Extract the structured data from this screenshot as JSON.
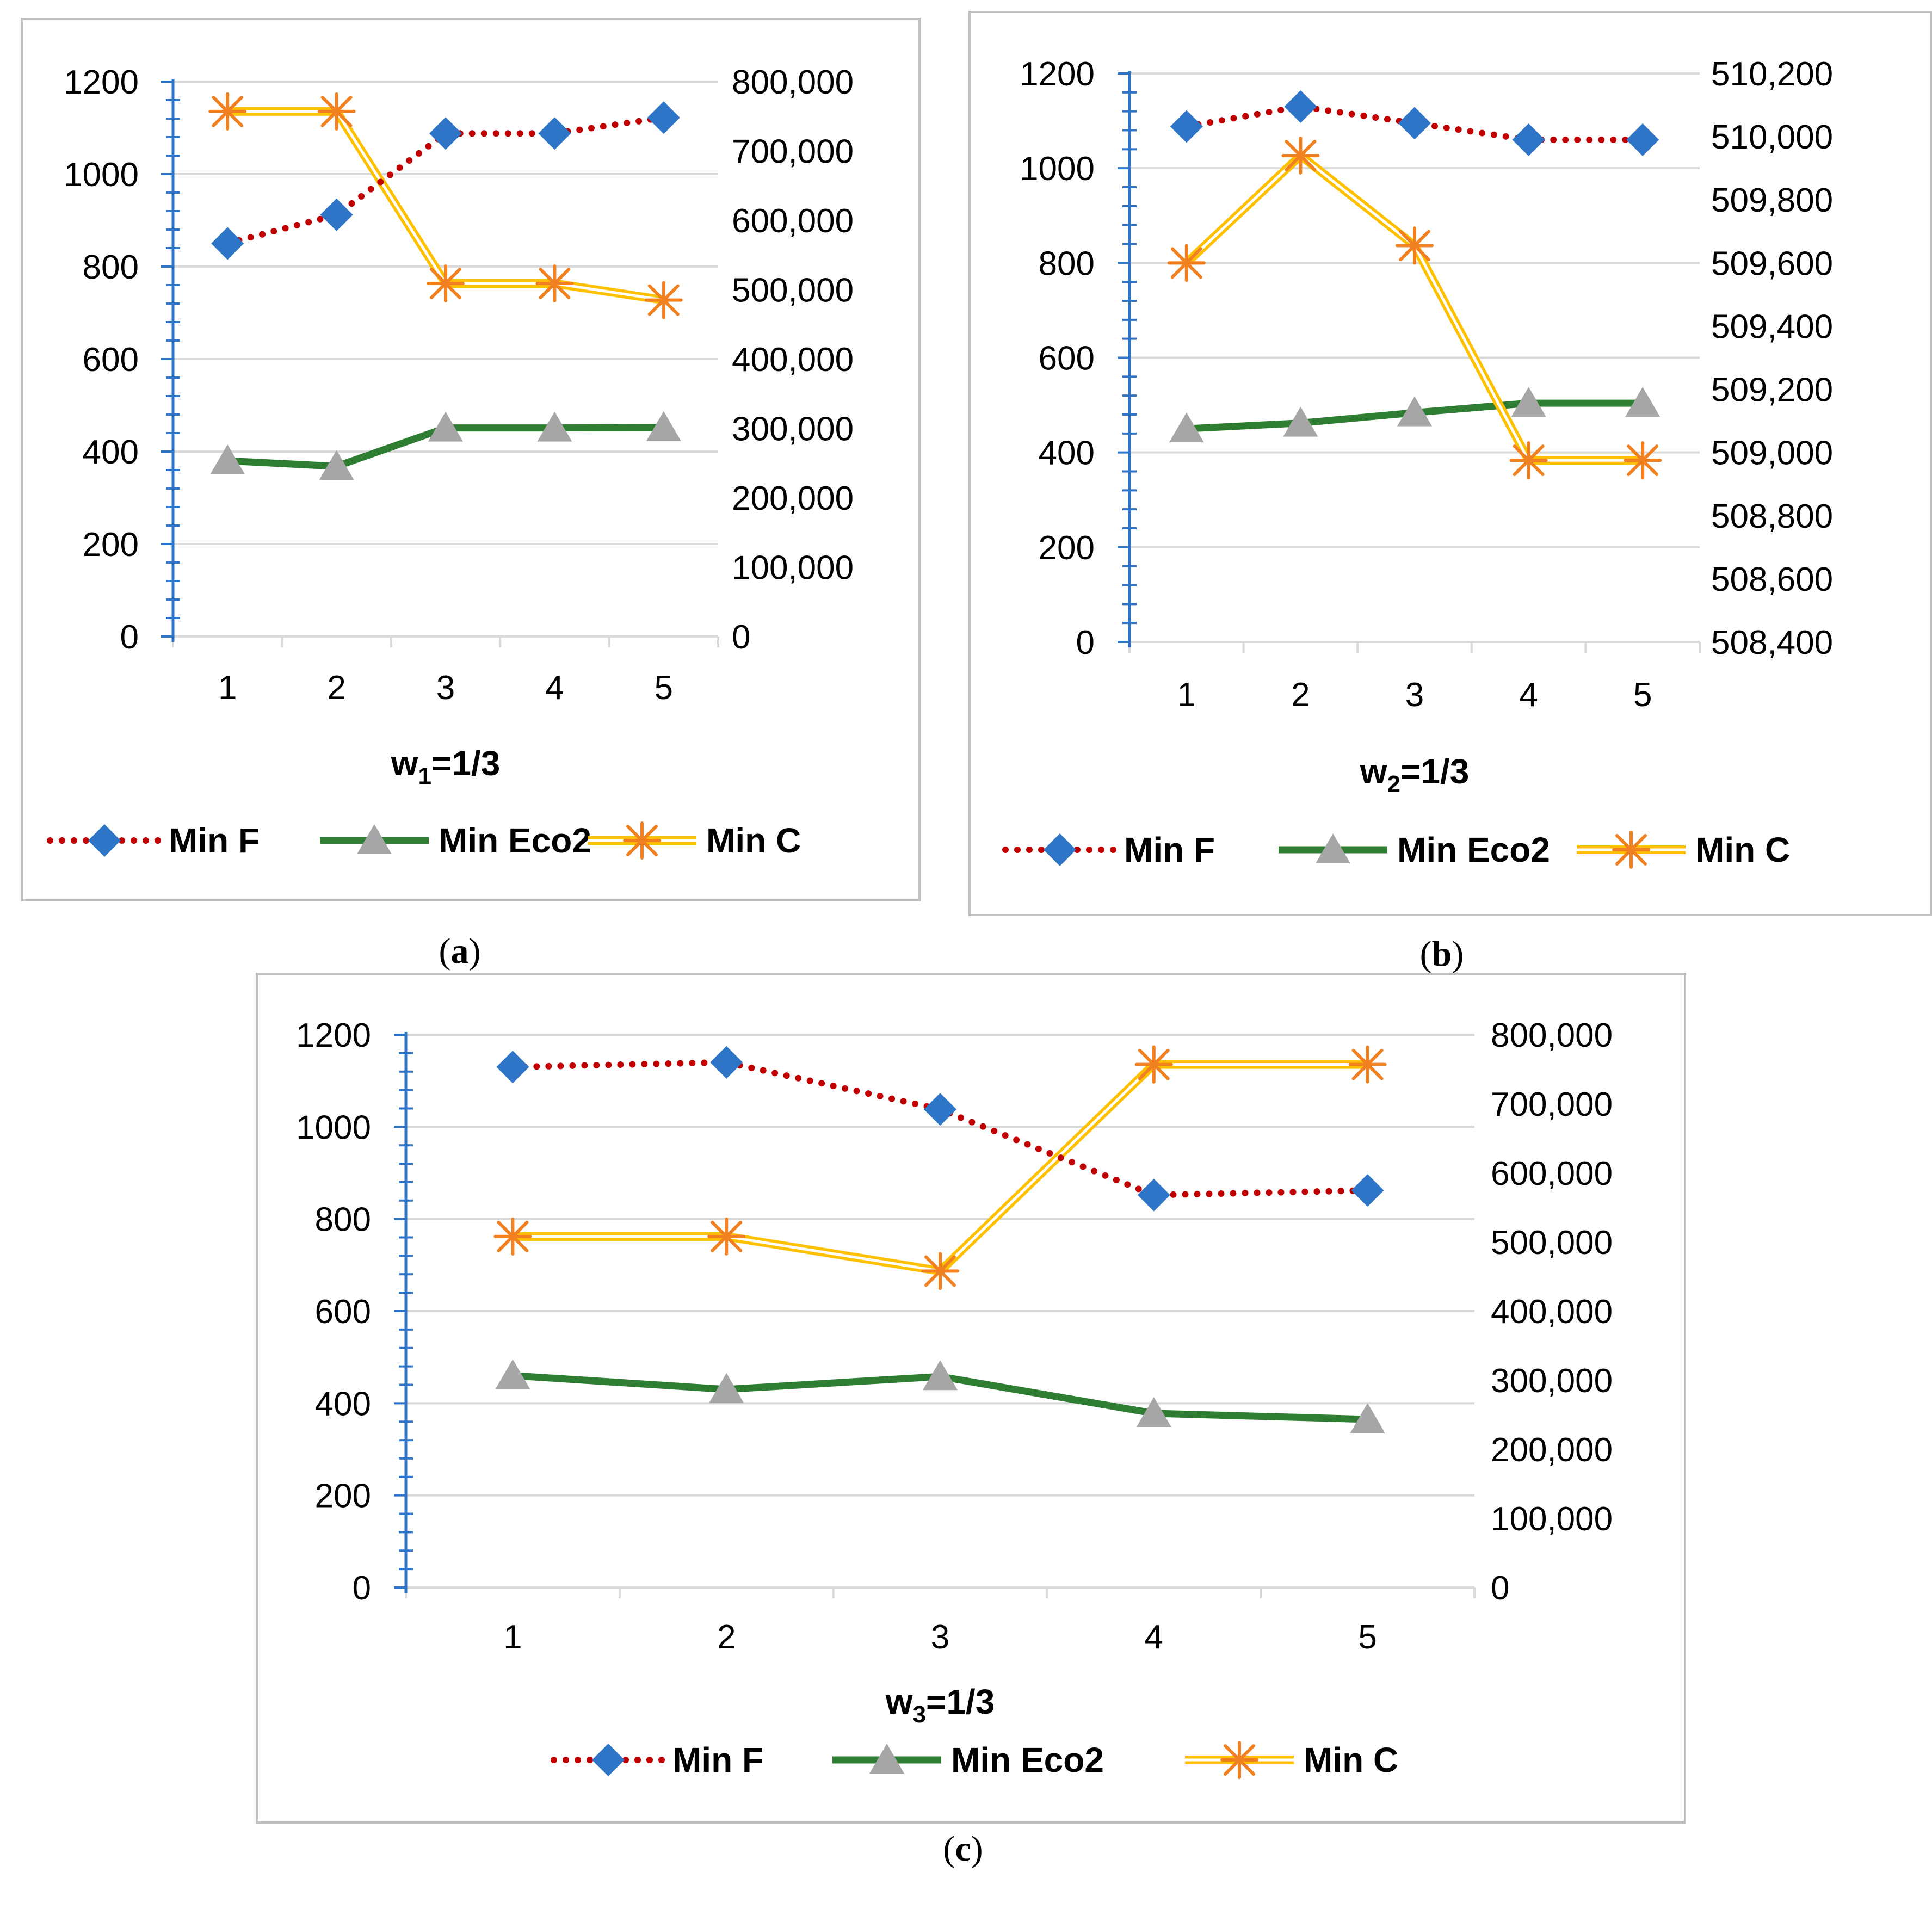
{
  "figure": {
    "colors": {
      "min_f": "#C00000",
      "min_f_marker": "#2E75C8",
      "min_eco2": "#2E7D32",
      "min_eco2_marker": "#A6A6A6",
      "min_c": "#FFC000",
      "min_c_marker": "#F08020",
      "axis_left": "#2E75C8",
      "grid": "#D9D9D9",
      "frame": "#BFBFBF"
    }
  },
  "chart_data": [
    {
      "type": "line",
      "caption": "a",
      "xlabel_main": "w",
      "xlabel_sub": "1",
      "xlabel_tail": "=1/3",
      "categories": [
        "1",
        "2",
        "3",
        "4",
        "5"
      ],
      "ylim_left": [
        0,
        1200
      ],
      "yticks_left": [
        "0",
        "200",
        "400",
        "600",
        "800",
        "1000",
        "1200"
      ],
      "ylim_right": [
        0,
        800000
      ],
      "yticks_right": [
        "0",
        "100,000",
        "200,000",
        "300,000",
        "400,000",
        "500,000",
        "600,000",
        "700,000",
        "800,000"
      ],
      "grid": true,
      "legend_position": "bottom",
      "series": [
        {
          "name": "Min F",
          "axis": "left",
          "values": [
            850,
            912,
            1088,
            1088,
            1122
          ]
        },
        {
          "name": "Min Eco2",
          "axis": "left",
          "values": [
            380,
            368,
            451,
            451,
            452
          ]
        },
        {
          "name": "Min C",
          "axis": "right",
          "values": [
            757000,
            757000,
            509000,
            509000,
            485000
          ]
        }
      ]
    },
    {
      "type": "line",
      "caption": "b",
      "xlabel_main": "w",
      "xlabel_sub": "2",
      "xlabel_tail": "=1/3",
      "categories": [
        "1",
        "2",
        "3",
        "4",
        "5"
      ],
      "ylim_left": [
        0,
        1200
      ],
      "yticks_left": [
        "0",
        "200",
        "400",
        "600",
        "800",
        "1000",
        "1200"
      ],
      "ylim_right": [
        508400,
        510200
      ],
      "yticks_right": [
        "508,400",
        "508,600",
        "508,800",
        "509,000",
        "509,200",
        "509,400",
        "509,600",
        "509,800",
        "510,000",
        "510,200"
      ],
      "grid": true,
      "legend_position": "bottom",
      "series": [
        {
          "name": "Min F",
          "axis": "left",
          "values": [
            1088,
            1130,
            1095,
            1060,
            1060
          ]
        },
        {
          "name": "Min Eco2",
          "axis": "left",
          "values": [
            450,
            462,
            484,
            504,
            504
          ]
        },
        {
          "name": "Min C",
          "axis": "right",
          "values": [
            509600,
            509940,
            509655,
            508975,
            508975
          ]
        }
      ]
    },
    {
      "type": "line",
      "caption": "c",
      "xlabel_main": "w",
      "xlabel_sub": "3",
      "xlabel_tail": "=1/3",
      "categories": [
        "1",
        "2",
        "3",
        "4",
        "5"
      ],
      "ylim_left": [
        0,
        1200
      ],
      "yticks_left": [
        "0",
        "200",
        "400",
        "600",
        "800",
        "1000",
        "1200"
      ],
      "ylim_right": [
        0,
        800000
      ],
      "yticks_right": [
        "0",
        "100,000",
        "200,000",
        "300,000",
        "400,000",
        "500,000",
        "600,000",
        "700,000",
        "800,000"
      ],
      "grid": true,
      "legend_position": "bottom",
      "series": [
        {
          "name": "Min F",
          "axis": "left",
          "values": [
            1130,
            1140,
            1038,
            852,
            862
          ]
        },
        {
          "name": "Min Eco2",
          "axis": "left",
          "values": [
            460,
            430,
            458,
            378,
            365
          ]
        },
        {
          "name": "Min C",
          "axis": "right",
          "values": [
            508000,
            508000,
            458000,
            757000,
            757000
          ]
        }
      ]
    }
  ]
}
